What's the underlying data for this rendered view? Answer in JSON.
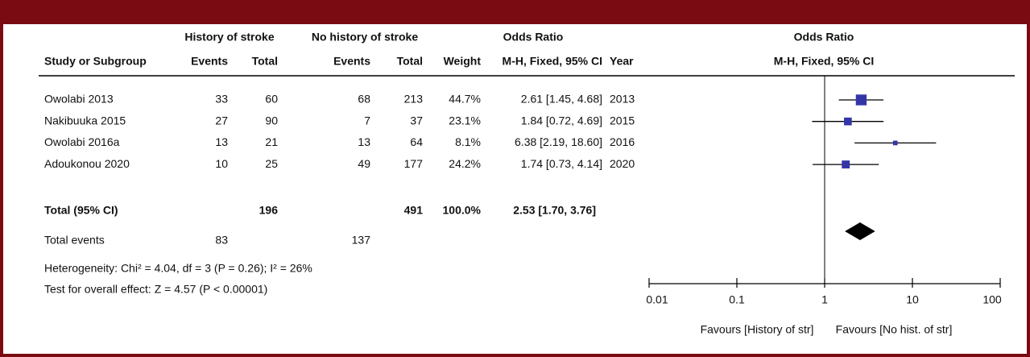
{
  "chart_data": {
    "type": "forest",
    "header_groups": [
      "History of stroke",
      "No history of stroke",
      "Odds Ratio"
    ],
    "columns": [
      "Study or Subgroup",
      "Events",
      "Total",
      "Events",
      "Total",
      "Weight",
      "M-H, Fixed, 95% CI",
      "Year"
    ],
    "plot_title": "Odds Ratio",
    "plot_subtitle": "M-H, Fixed, 95% CI",
    "studies": [
      {
        "name": "Owolabi 2013",
        "events1": 33,
        "total1": 60,
        "events2": 68,
        "total2": 213,
        "weight": 44.7,
        "weight_label": "44.7%",
        "or": 2.61,
        "lower": 1.45,
        "upper": 4.68,
        "ci_label": "2.61 [1.45, 4.68]",
        "year": 2013
      },
      {
        "name": "Nakibuuka 2015",
        "events1": 27,
        "total1": 90,
        "events2": 7,
        "total2": 37,
        "weight": 23.1,
        "weight_label": "23.1%",
        "or": 1.84,
        "lower": 0.72,
        "upper": 4.69,
        "ci_label": "1.84 [0.72, 4.69]",
        "year": 2015
      },
      {
        "name": "Owolabi 2016a",
        "events1": 13,
        "total1": 21,
        "events2": 13,
        "total2": 64,
        "weight": 8.1,
        "weight_label": "8.1%",
        "or": 6.38,
        "lower": 2.19,
        "upper": 18.6,
        "ci_label": "6.38 [2.19, 18.60]",
        "year": 2016
      },
      {
        "name": "Adoukonou 2020",
        "events1": 10,
        "total1": 25,
        "events2": 49,
        "total2": 177,
        "weight": 24.2,
        "weight_label": "24.2%",
        "or": 1.74,
        "lower": 0.73,
        "upper": 4.14,
        "ci_label": "1.74 [0.73, 4.14]",
        "year": 2020
      }
    ],
    "total": {
      "name": "Total (95% CI)",
      "total1": 196,
      "total2": 491,
      "weight": 100,
      "weight_label": "100.0%",
      "or": 2.53,
      "lower": 1.7,
      "upper": 3.76,
      "ci_label": "2.53 [1.70, 3.76]"
    },
    "total_events": {
      "label": "Total events",
      "events1": 83,
      "events2": 137
    },
    "heterogeneity": "Heterogeneity: Chi² = 4.04, df = 3 (P = 0.26); I² = 26%",
    "overall_effect": "Test for overall effect: Z = 4.57 (P < 0.00001)",
    "xlim": [
      0.01,
      100
    ],
    "xticks": [
      0.01,
      0.1,
      1,
      10,
      100
    ],
    "log_scale": true,
    "favours_left": "Favours [History of str]",
    "favours_right": "Favours [No hist. of str]",
    "color": "#3535a8",
    "total_color": "#000000"
  }
}
